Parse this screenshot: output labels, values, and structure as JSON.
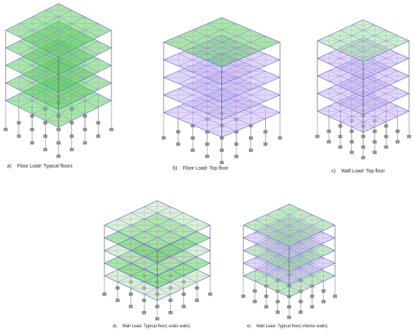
{
  "figures": [
    {
      "label": "a)",
      "caption": "Floor Load- Typical floors"
    },
    {
      "label": "b)",
      "caption": "Floor Load- Top floor"
    },
    {
      "label": "c)",
      "caption": "Wall Load- Top floor"
    },
    {
      "label": "d)",
      "caption": "Wall Load- Typical floor( outer walls)"
    },
    {
      "label": "e)",
      "caption": "Wall Load- Typical floor( interior walls)"
    }
  ]
}
